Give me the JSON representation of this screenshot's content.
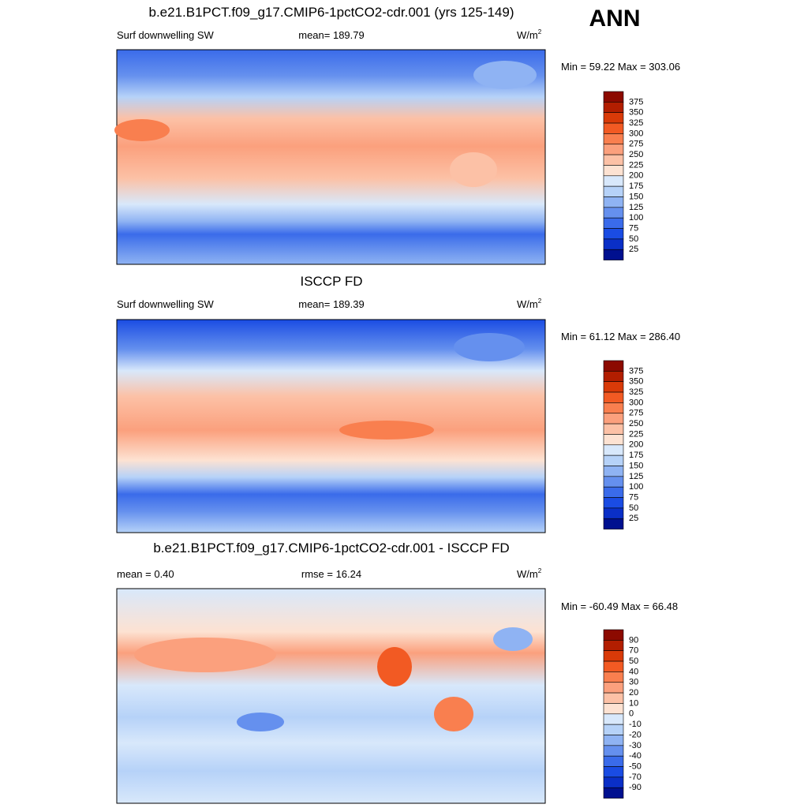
{
  "season": "ANN",
  "panels": [
    {
      "title": "b.e21.B1PCT.f09_g17.CMIP6-1pctCO2-cdr.001 (yrs 125-149)",
      "left": "Surf downwelling SW",
      "center": "mean= 189.79",
      "units": "W/m",
      "units_sup": "2",
      "minmax": "Min =  59.22 Max = 303.06",
      "colorbar": {
        "labels": [
          "375",
          "350",
          "325",
          "300",
          "275",
          "250",
          "225",
          "200",
          "175",
          "150",
          "125",
          "100",
          "75",
          "50",
          "25"
        ],
        "colors": [
          "#8c0a00",
          "#b21e00",
          "#d93a08",
          "#f25a23",
          "#f97f4f",
          "#fba07d",
          "#fcc1a6",
          "#fde2d2",
          "#d8e8fb",
          "#b6d2f8",
          "#8fb3f3",
          "#6590ee",
          "#3a6bea",
          "#1a4ce3",
          "#0a2fc7",
          "#00108f"
        ]
      }
    },
    {
      "title": "ISCCP FD",
      "left": "Surf downwelling SW",
      "center": "mean= 189.39",
      "units": "W/m",
      "units_sup": "2",
      "minmax": "Min =  61.12 Max = 286.40",
      "colorbar": {
        "labels": [
          "375",
          "350",
          "325",
          "300",
          "275",
          "250",
          "225",
          "200",
          "175",
          "150",
          "125",
          "100",
          "75",
          "50",
          "25"
        ],
        "colors": [
          "#8c0a00",
          "#b21e00",
          "#d93a08",
          "#f25a23",
          "#f97f4f",
          "#fba07d",
          "#fcc1a6",
          "#fde2d2",
          "#d8e8fb",
          "#b6d2f8",
          "#8fb3f3",
          "#6590ee",
          "#3a6bea",
          "#1a4ce3",
          "#0a2fc7",
          "#00108f"
        ]
      }
    },
    {
      "title": "b.e21.B1PCT.f09_g17.CMIP6-1pctCO2-cdr.001 - ISCCP FD",
      "left": "mean =   0.40",
      "center": "rmse =  16.24",
      "units": "W/m",
      "units_sup": "2",
      "minmax": "Min = -60.49 Max =  66.48",
      "colorbar": {
        "labels": [
          "90",
          "70",
          "50",
          "40",
          "30",
          "20",
          "10",
          "0",
          "-10",
          "-20",
          "-30",
          "-40",
          "-50",
          "-70",
          "-90"
        ],
        "colors": [
          "#8c0a00",
          "#b21e00",
          "#d93a08",
          "#f25a23",
          "#f97f4f",
          "#fba07d",
          "#fcc1a6",
          "#fde2d2",
          "#d8e8fb",
          "#b6d2f8",
          "#8fb3f3",
          "#6590ee",
          "#3a6bea",
          "#1a4ce3",
          "#0a2fc7",
          "#00108f"
        ]
      }
    }
  ]
}
